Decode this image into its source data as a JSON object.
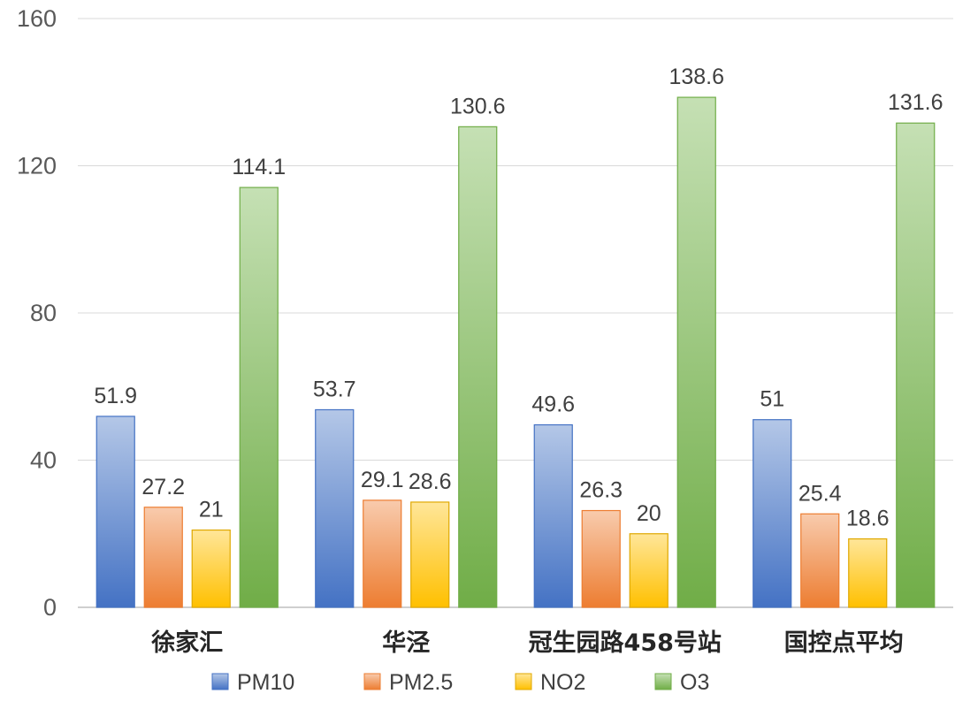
{
  "chart_data": {
    "type": "bar",
    "categories": [
      "徐家汇",
      "华泾",
      "冠生园路458号站",
      "国控点平均"
    ],
    "series": [
      {
        "name": "PM10",
        "values": [
          51.9,
          53.7,
          49.6,
          51
        ],
        "labels": [
          "51.9",
          "53.7",
          "49.6",
          "51"
        ],
        "color_top": "#b4c7e7",
        "color_bottom": "#4472c4",
        "stroke": "#4472c4"
      },
      {
        "name": "PM2.5",
        "values": [
          27.2,
          29.1,
          26.3,
          25.4
        ],
        "labels": [
          "27.2",
          "29.1",
          "26.3",
          "25.4"
        ],
        "color_top": "#f8cbad",
        "color_bottom": "#ed7d31",
        "stroke": "#ed7d31"
      },
      {
        "name": "NO2",
        "values": [
          21,
          28.6,
          20,
          18.6
        ],
        "labels": [
          "21",
          "28.6",
          "20",
          "18.6"
        ],
        "color_top": "#ffe699",
        "color_bottom": "#ffc000",
        "stroke": "#e0a800"
      },
      {
        "name": "O3",
        "values": [
          114.1,
          130.6,
          138.6,
          131.6
        ],
        "labels": [
          "114.1",
          "130.6",
          "138.6",
          "131.6"
        ],
        "color_top": "#c5e0b4",
        "color_bottom": "#70ad47",
        "stroke": "#70ad47"
      }
    ],
    "y_ticks": [
      "0",
      "40",
      "80",
      "120",
      "160"
    ],
    "ylim": [
      0,
      160
    ],
    "grid": true,
    "legend_position": "bottom",
    "title": "",
    "xlabel": "",
    "ylabel": ""
  }
}
